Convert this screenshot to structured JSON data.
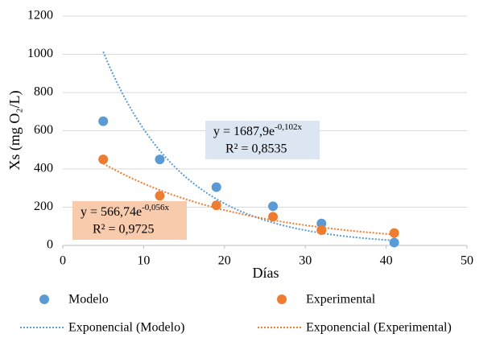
{
  "chart_data": {
    "type": "scatter",
    "x_label": "Días",
    "y_label": "Xs (mg O₂/L)",
    "xlim": [
      0,
      50
    ],
    "xticks": [
      0,
      10,
      20,
      30,
      40,
      50
    ],
    "ylim": [
      0,
      1200
    ],
    "yticks": [
      0,
      200,
      400,
      600,
      800,
      1000,
      1200
    ],
    "grid": true,
    "series": [
      {
        "name": "Modelo",
        "color": "#5b9bd5",
        "x": [
          5,
          12,
          19,
          26,
          32,
          41
        ],
        "values": [
          650,
          450,
          305,
          205,
          115,
          15
        ],
        "trendline": {
          "name": "Exponencial (Modelo)",
          "coef": {
            "value": 1687.9,
            "label": "y = 1687,9e"
          },
          "exponent": {
            "value": -0.102,
            "label": "-0,102x"
          },
          "r2": {
            "value": 0.8535,
            "label": "R² = 0,8535"
          },
          "box_color": "#dce6f2"
        }
      },
      {
        "name": "Experimental",
        "color": "#ed7d31",
        "x": [
          5,
          12,
          19,
          26,
          32,
          41
        ],
        "values": [
          450,
          260,
          210,
          150,
          80,
          65
        ],
        "trendline": {
          "name": "Exponencial (Experimental)",
          "coef": {
            "value": 566.74,
            "label": "y = 566,74e"
          },
          "exponent": {
            "value": -0.056,
            "label": "-0,056x"
          },
          "r2": {
            "value": 0.9725,
            "label": "R² = 0,9725"
          },
          "box_color": "#f8cbad"
        }
      }
    ]
  }
}
